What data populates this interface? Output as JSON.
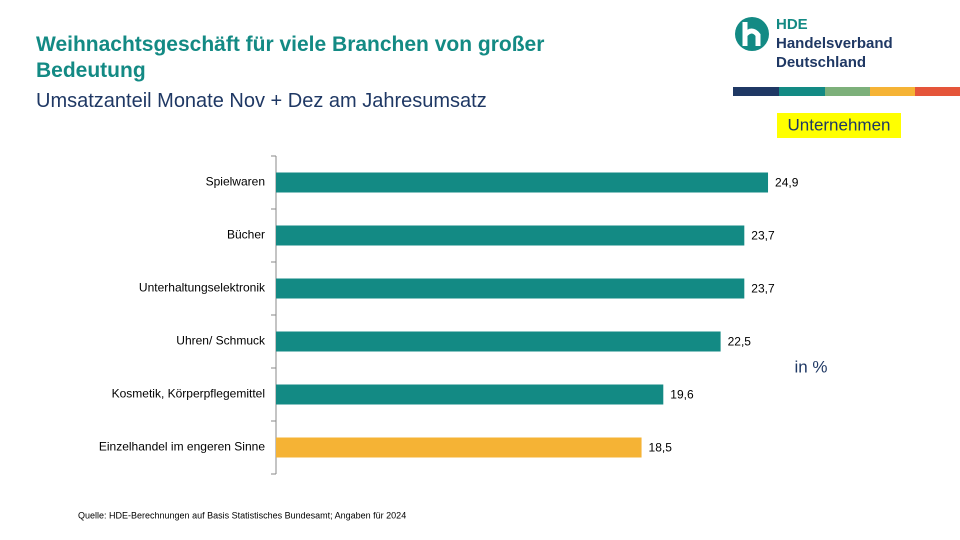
{
  "chart_data": {
    "type": "hbar",
    "title": "Weihnachtsgeschäft für viele Branchen von großer Bedeutung",
    "subtitle": "Umsatzanteil Monate Nov + Dez am Jahresumsatz",
    "categories": [
      "Spielwaren",
      "Bücher",
      "Unterhaltungselektronik",
      "Uhren/ Schmuck",
      "Kosmetik, Körperpflegemittel",
      "Einzelhandel im engeren Sinne"
    ],
    "values": [
      24.9,
      23.7,
      23.7,
      22.5,
      19.6,
      18.5
    ],
    "value_labels": [
      "24,9",
      "23,7",
      "23,7",
      "22,5",
      "19,6",
      "18,5"
    ],
    "colors": [
      "#138a84",
      "#138a84",
      "#138a84",
      "#138a84",
      "#138a84",
      "#f5b335"
    ],
    "xlim": [
      0,
      25
    ],
    "unit_label": "in %",
    "source": "Quelle: HDE-Berechnungen auf Basis Statistisches Bundesamt; Angaben für 2024"
  },
  "tag": "Unternehmen",
  "logo": {
    "abbr": "HDE",
    "line1": "Handelsverband",
    "line2": "Deutschland"
  }
}
